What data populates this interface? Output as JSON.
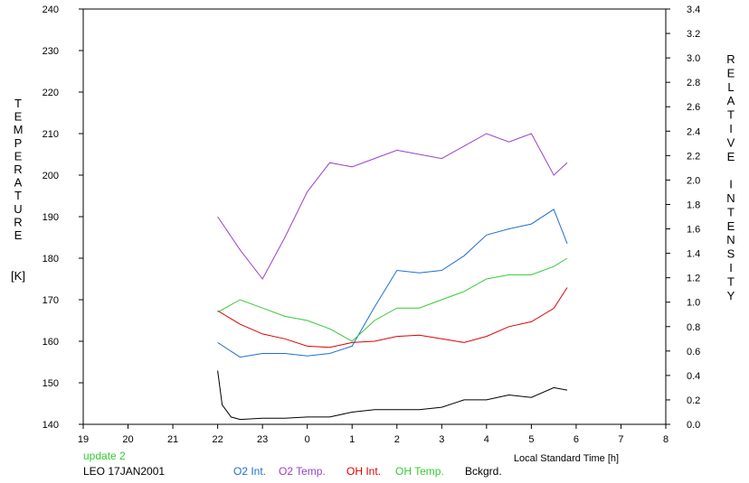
{
  "chart_data": {
    "type": "line",
    "xlabel": "Local Standard Time [h]",
    "ylabel_left": "TEMPERATURE",
    "ylabel_left_unit": "[K]",
    "ylabel_right": "RELATIVE INTENSITY",
    "x_ticks": [
      "19",
      "20",
      "21",
      "22",
      "23",
      "0",
      "1",
      "2",
      "3",
      "4",
      "5",
      "6",
      "7",
      "8"
    ],
    "xlim": [
      19,
      32
    ],
    "ylim_left": [
      140,
      240
    ],
    "ylim_right": [
      0,
      3.4
    ],
    "y_left_ticks": [
      "140",
      "150",
      "160",
      "170",
      "180",
      "190",
      "200",
      "210",
      "220",
      "230",
      "240"
    ],
    "y_right_ticks": [
      "0.0",
      "0.2",
      "0.4",
      "0.6",
      "0.8",
      "1.0",
      "1.2",
      "1.4",
      "1.6",
      "1.8",
      "2.0",
      "2.2",
      "2.4",
      "2.6",
      "2.8",
      "3.0",
      "3.2",
      "3.4"
    ],
    "grid": false,
    "series": [
      {
        "name": "O2 Int.",
        "color": "#1f6fd0",
        "axis": "right",
        "x": [
          22.0,
          22.5,
          23.0,
          23.5,
          24.0,
          24.5,
          25.0,
          25.5,
          26.0,
          26.5,
          27.0,
          27.5,
          28.0,
          28.5,
          29.0,
          29.5,
          29.8
        ],
        "y": [
          0.67,
          0.55,
          0.58,
          0.58,
          0.56,
          0.58,
          0.64,
          0.96,
          1.26,
          1.24,
          1.26,
          1.38,
          1.55,
          1.6,
          1.64,
          1.76,
          1.48
        ]
      },
      {
        "name": "O2 Temp.",
        "color": "#9a40c8",
        "axis": "left",
        "x": [
          22.0,
          22.5,
          23.0,
          23.5,
          24.0,
          24.5,
          25.0,
          25.5,
          26.0,
          26.5,
          27.0,
          27.5,
          28.0,
          28.5,
          29.0,
          29.5,
          29.8
        ],
        "y": [
          190,
          182,
          175,
          185,
          196,
          203,
          202,
          204,
          206,
          205,
          204,
          207,
          210,
          208,
          210,
          200,
          203
        ]
      },
      {
        "name": "OH Int.",
        "color": "#e00000",
        "axis": "right",
        "x": [
          22.0,
          22.5,
          23.0,
          23.5,
          24.0,
          24.5,
          25.0,
          25.5,
          26.0,
          26.5,
          27.0,
          27.5,
          28.0,
          28.5,
          29.0,
          29.5,
          29.8
        ],
        "y": [
          0.93,
          0.82,
          0.74,
          0.7,
          0.64,
          0.63,
          0.67,
          0.68,
          0.72,
          0.73,
          0.7,
          0.67,
          0.72,
          0.8,
          0.84,
          0.95,
          1.12
        ]
      },
      {
        "name": "OH Temp.",
        "color": "#33cc33",
        "axis": "left",
        "x": [
          22.0,
          22.5,
          23.0,
          23.5,
          24.0,
          24.5,
          25.0,
          25.5,
          26.0,
          26.5,
          27.0,
          27.5,
          28.0,
          28.5,
          29.0,
          29.5,
          29.8
        ],
        "y": [
          167,
          170,
          168,
          166,
          165,
          163,
          160,
          165,
          168,
          168,
          170,
          172,
          175,
          176,
          176,
          178,
          180
        ]
      },
      {
        "name": "Bckgrd.",
        "color": "#000000",
        "axis": "right",
        "x": [
          22.0,
          22.1,
          22.3,
          22.5,
          23.0,
          23.5,
          24.0,
          24.5,
          25.0,
          25.5,
          26.0,
          26.5,
          27.0,
          27.5,
          28.0,
          28.5,
          29.0,
          29.5,
          29.8
        ],
        "y": [
          0.44,
          0.16,
          0.06,
          0.04,
          0.05,
          0.05,
          0.06,
          0.06,
          0.1,
          0.12,
          0.12,
          0.12,
          0.14,
          0.2,
          0.2,
          0.24,
          0.22,
          0.3,
          0.28
        ]
      }
    ]
  },
  "footer": {
    "status": "update 2",
    "status_color": "#33cc33",
    "station": "LEO 17JAN2001",
    "legend": [
      {
        "label": "O2 Int.",
        "color": "#1f6fd0"
      },
      {
        "label": "O2 Temp.",
        "color": "#9a40c8"
      },
      {
        "label": "OH Int.",
        "color": "#e00000"
      },
      {
        "label": "OH Temp.",
        "color": "#33cc33"
      },
      {
        "label": "Bckgrd.",
        "color": "#000000"
      }
    ]
  }
}
